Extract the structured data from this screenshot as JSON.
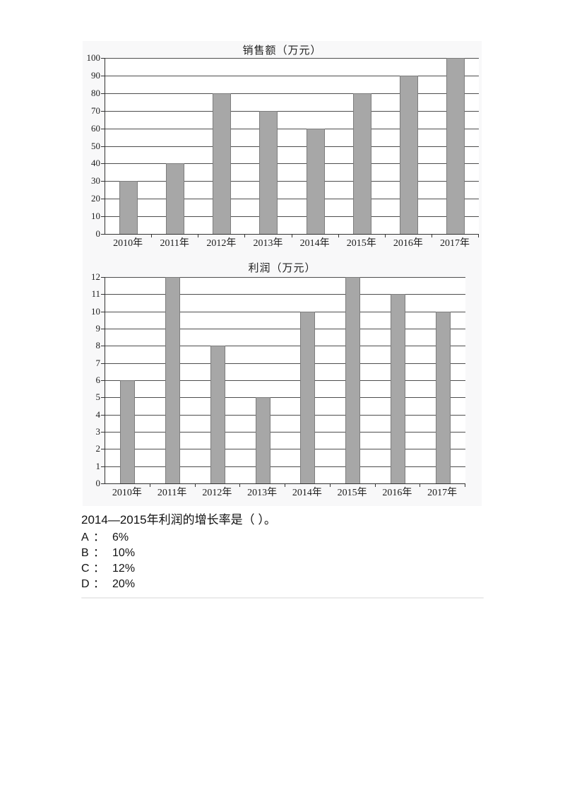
{
  "figure": {
    "background": "#f8f8f9"
  },
  "chart_data": [
    {
      "type": "bar",
      "title": "销售额（万元）",
      "categories": [
        "2010年",
        "2011年",
        "2012年",
        "2013年",
        "2014年",
        "2015年",
        "2016年",
        "2017年"
      ],
      "values": [
        30,
        40,
        80,
        70,
        60,
        80,
        90,
        100
      ],
      "xlabel": "",
      "ylabel": "",
      "ylim": [
        0,
        100
      ],
      "ytick_step": 10,
      "grid": true,
      "legend": false,
      "bar_color": "#a7a7a7",
      "bar_border_color": "#7d7d7d"
    },
    {
      "type": "bar",
      "title": "利润（万元）",
      "categories": [
        "2010年",
        "2011年",
        "2012年",
        "2013年",
        "2014年",
        "2015年",
        "2016年",
        "2017年"
      ],
      "values": [
        6,
        12,
        8,
        5,
        10,
        12,
        11,
        10
      ],
      "xlabel": "",
      "ylabel": "",
      "ylim": [
        0,
        12
      ],
      "ytick_step": 1,
      "grid": true,
      "legend": false,
      "bar_color": "#a7a7a7",
      "bar_border_color": "#7d7d7d"
    }
  ],
  "question": {
    "text": "2014—2015年利润的增长率是（ ）。",
    "separator": "：",
    "options": [
      {
        "letter": "A",
        "value": "6%"
      },
      {
        "letter": "B",
        "value": "10%"
      },
      {
        "letter": "C",
        "value": "12%"
      },
      {
        "letter": "D",
        "value": "20%"
      }
    ]
  }
}
